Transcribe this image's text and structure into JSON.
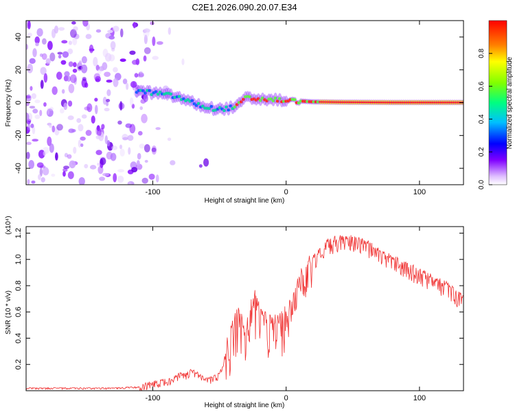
{
  "title": "C2E1.2026.090.20.07.E34",
  "chart_data": [
    {
      "type": "heatmap",
      "xlabel": "Height of straight line (km)",
      "ylabel": "Frequency (Hz)",
      "xlim": [
        -195,
        133
      ],
      "ylim": [
        -50,
        50
      ],
      "xticks": [
        -100,
        0,
        100
      ],
      "xtick_labels": [
        "-100",
        "0",
        "100"
      ],
      "yticks": [
        -40,
        -20,
        0,
        20,
        40
      ],
      "ytick_labels": [
        "-40",
        "-20",
        "0",
        "20",
        "40"
      ],
      "colorbar": {
        "label": "Normalized spectral amplitude",
        "range": [
          0,
          1
        ],
        "ticks": [
          0.0,
          0.2,
          0.4,
          0.6,
          0.8
        ],
        "tick_labels": [
          "0.0",
          "0.2",
          "0.4",
          "0.6",
          "0.8"
        ]
      },
      "ridge": {
        "description": "main frequency ridge",
        "x": [
          -110,
          -100,
          -90,
          -80,
          -70,
          -60,
          -50,
          -40,
          -35,
          -30,
          -20,
          -10,
          0,
          10,
          20,
          40,
          60,
          80,
          100,
          120,
          133
        ],
        "y": [
          7,
          6,
          5,
          3,
          0,
          -3,
          -4,
          -3,
          -1,
          3,
          2,
          2,
          1,
          1,
          0.5,
          0.3,
          0.2,
          0.1,
          0.1,
          0.1,
          0.1
        ]
      }
    },
    {
      "type": "line",
      "xlabel": "Height of straight line (km)",
      "ylabel": "SNR (10 * v/v)",
      "scale_label": "(x10⁴)",
      "xlim": [
        -195,
        133
      ],
      "ylim": [
        0,
        1.25
      ],
      "xticks": [
        -100,
        0,
        100
      ],
      "xtick_labels": [
        "-100",
        "0",
        "100"
      ],
      "yticks": [
        0.2,
        0.4,
        0.6,
        0.8,
        1.0,
        1.2
      ],
      "ytick_labels": [
        "0.2",
        "0.4",
        "0.6",
        "0.8",
        "1.0",
        "1.2"
      ],
      "series": [
        {
          "name": "SNR",
          "color": "#f03030",
          "x": [
            -195,
            -160,
            -130,
            -110,
            -100,
            -90,
            -80,
            -70,
            -60,
            -50,
            -45,
            -40,
            -35,
            -30,
            -25,
            -20,
            -15,
            -10,
            0,
            10,
            20,
            30,
            40,
            50,
            60,
            70,
            80,
            90,
            100,
            110,
            120,
            133
          ],
          "y": [
            0.02,
            0.02,
            0.02,
            0.03,
            0.06,
            0.08,
            0.12,
            0.15,
            0.08,
            0.12,
            0.3,
            0.45,
            0.6,
            0.4,
            0.7,
            0.6,
            0.5,
            0.5,
            0.55,
            0.85,
            1.0,
            1.12,
            1.16,
            1.15,
            1.12,
            1.05,
            1.0,
            0.95,
            0.9,
            0.85,
            0.8,
            0.7
          ]
        }
      ]
    }
  ]
}
